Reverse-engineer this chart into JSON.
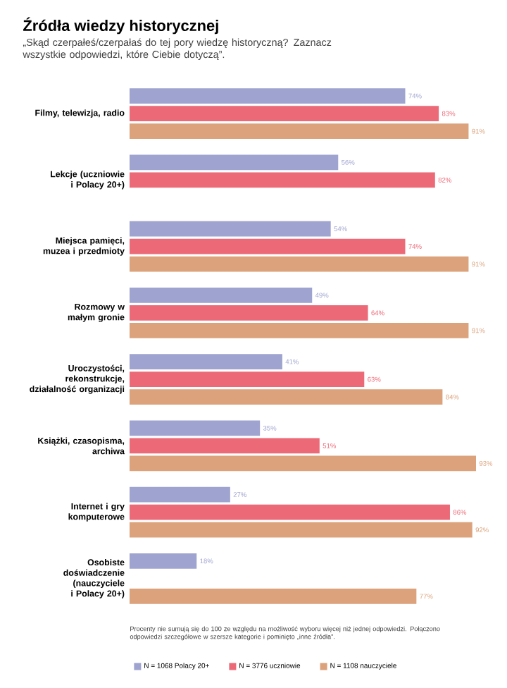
{
  "chart_data": {
    "type": "bar",
    "orientation": "horizontal",
    "title": "Źródła wiedzy historycznej",
    "subtitle": "„Skąd czerpałeś/czerpałaś do tej pory wiedzę historyczną? Zaznacz wszystkie odpowiedzi, które Ciebie dotyczą”.",
    "categories": [
      "Filmy, telewizja, radio",
      "Lekcje (uczniowie i Polacy 20+)",
      "Miejsca pamięci, muzea i przedmioty",
      "Rozmowy w małym gronie",
      "Uroczystości, rekonstrukcje, działalność organizacji",
      "Książki, czasopisma, archiwa",
      "Internet i gry komputerowe",
      "Osobiste doświadczenie (nauczyciele i Polacy 20+)"
    ],
    "series": [
      {
        "name": "N = 1068 Polacy 20+",
        "color": "#9fa3cf",
        "values": [
          74,
          56,
          54,
          49,
          41,
          35,
          27,
          18
        ],
        "value_labels": [
          "74%",
          "56%",
          "54%",
          "49%",
          "41%",
          "35%",
          "27%",
          "18%"
        ]
      },
      {
        "name": "N = 3776 uczniowie",
        "color": "#ec6a78",
        "values": [
          83,
          82,
          74,
          64,
          63,
          51,
          86,
          null
        ],
        "value_labels": [
          "83%",
          "82%",
          "74%",
          "64%",
          "63%",
          "51%",
          "86%",
          null
        ]
      },
      {
        "name": "N = 1108 nauczyciele",
        "color": "#dba27c",
        "values": [
          91,
          null,
          91,
          91,
          84,
          93,
          92,
          77
        ],
        "value_labels": [
          "91%",
          null,
          "91%",
          "91%",
          "84%",
          "93%",
          "92%",
          "77%"
        ]
      }
    ],
    "legend": "bottom",
    "annotations": [
      "Procenty nie sumują się do 100 ze względu na możliwość wyboru więcej niż jednej odpowiedzi. Połączono odpowiedzi szczegółowe w szersze kategorie i pominięto „inne źródła”."
    ]
  }
}
